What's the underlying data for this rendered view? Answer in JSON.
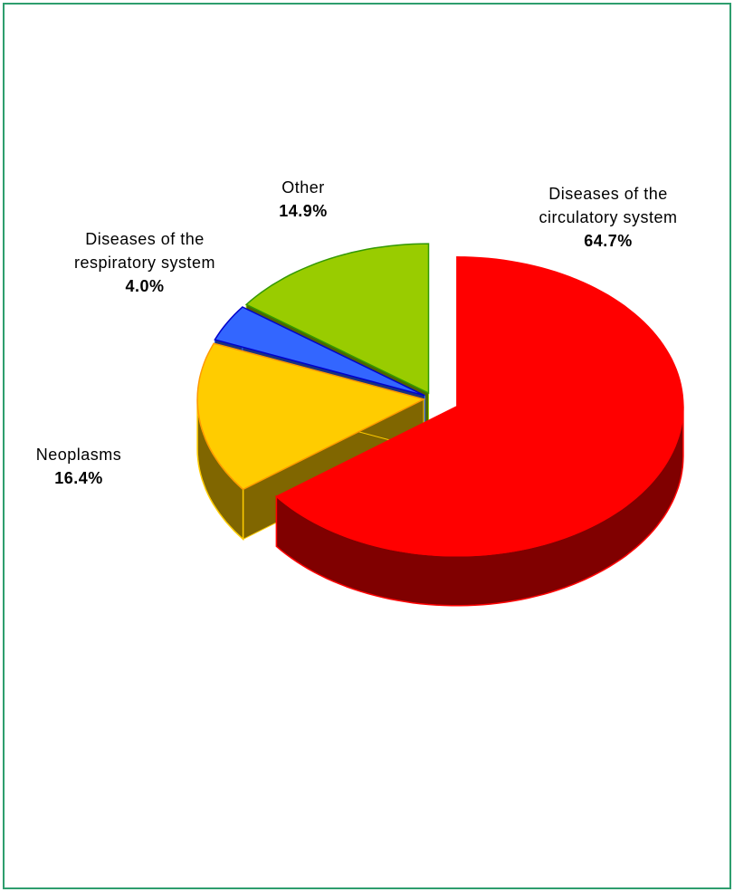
{
  "chart_data": {
    "type": "pie",
    "categories": [
      "Diseases of the circulatory system",
      "Neoplasms",
      "Diseases of the respiratory system",
      "Other"
    ],
    "values": [
      64.7,
      16.4,
      4.0,
      14.9
    ],
    "value_labels": [
      "64.7%",
      "16.4%",
      "4.0%",
      "14.9%"
    ],
    "colors": [
      "#ff0000",
      "#ffcc00",
      "#3366ff",
      "#99cc00"
    ],
    "three_d": true,
    "exploded": true
  }
}
